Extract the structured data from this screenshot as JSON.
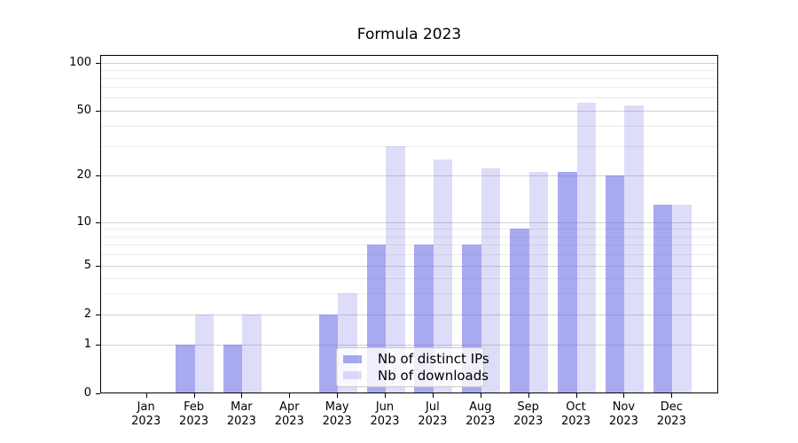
{
  "chart_data": {
    "type": "bar",
    "title": "Formula 2023",
    "categories": [
      "Jan",
      "Feb",
      "Mar",
      "Apr",
      "May",
      "Jun",
      "Jul",
      "Aug",
      "Sep",
      "Oct",
      "Nov",
      "Dec"
    ],
    "category_year": "2023",
    "series": [
      {
        "name": "Nb of distinct IPs",
        "key": "distinct-ips",
        "color": "rgba(99,99,228,0.55)",
        "values": [
          0,
          1,
          1,
          0,
          2,
          7,
          7,
          7,
          9,
          21,
          20,
          13
        ]
      },
      {
        "name": "Nb of downloads",
        "key": "downloads",
        "color": "rgba(99,99,228,0.22)",
        "values": [
          0,
          2,
          2,
          0,
          3,
          30,
          25,
          22,
          21,
          56,
          54,
          13
        ]
      }
    ],
    "y_axis": {
      "scale": "symlog",
      "ticks": [
        0,
        1,
        2,
        5,
        10,
        20,
        50,
        100
      ],
      "minor_ticks": [
        3,
        4,
        6,
        7,
        8,
        9,
        30,
        40,
        60,
        70,
        80,
        90
      ],
      "ylim": [
        0,
        110
      ]
    },
    "x_axis": {
      "tick_label_lines": [
        "month",
        "year"
      ]
    },
    "legend": {
      "position": "lower-center-inside",
      "entries": [
        "Nb of distinct IPs",
        "Nb of downloads"
      ]
    },
    "grid": true
  }
}
